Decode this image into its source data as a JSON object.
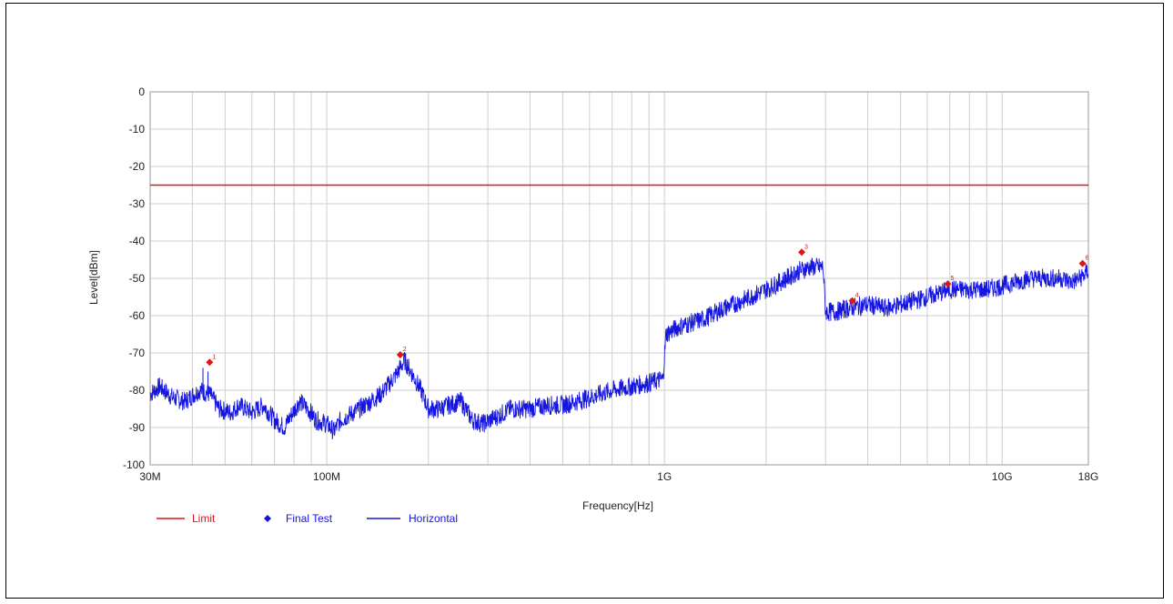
{
  "chart_data": {
    "type": "line",
    "xlabel": "Frequency[Hz]",
    "ylabel": "Level[dBm]",
    "x_scale": "log",
    "xlim_hz": [
      30000000,
      18000000000
    ],
    "ylim": [
      -100,
      0
    ],
    "grid": true,
    "x_tick_values_hz": [
      30000000,
      100000000,
      1000000000,
      10000000000,
      18000000000
    ],
    "x_tick_labels": [
      "30M",
      "100M",
      "1G",
      "10G",
      "18G"
    ],
    "y_ticks": [
      0,
      -10,
      -20,
      -30,
      -40,
      -50,
      -60,
      -70,
      -80,
      -90,
      -100
    ],
    "legend_position": "bottom-left",
    "colors": {
      "limit": "#e01515",
      "final_test": "#1515d8",
      "horizontal": "#1515e0"
    },
    "limit": {
      "name": "Limit",
      "value": -25
    },
    "final_test": {
      "name": "Final Test",
      "points": [
        {
          "label": "1",
          "x_hz": 45000000,
          "y": -72.5
        },
        {
          "label": "2",
          "x_hz": 165000000,
          "y": -70.5
        },
        {
          "label": "3",
          "x_hz": 2550000000,
          "y": -43
        },
        {
          "label": "4",
          "x_hz": 3600000000,
          "y": -56
        },
        {
          "label": "5",
          "x_hz": 6900000000,
          "y": -51.5
        },
        {
          "label": "6",
          "x_hz": 17300000000,
          "y": -46
        }
      ]
    },
    "horizontal": {
      "name": "Horizontal",
      "points": [
        [
          30000000,
          -81
        ],
        [
          32000000,
          -79
        ],
        [
          35000000,
          -82
        ],
        [
          38000000,
          -83
        ],
        [
          42000000,
          -80
        ],
        [
          45000000,
          -81
        ],
        [
          48000000,
          -85
        ],
        [
          52000000,
          -86
        ],
        [
          55000000,
          -84
        ],
        [
          60000000,
          -86
        ],
        [
          65000000,
          -84
        ],
        [
          70000000,
          -88
        ],
        [
          75000000,
          -90
        ],
        [
          78000000,
          -87
        ],
        [
          83000000,
          -83
        ],
        [
          88000000,
          -85
        ],
        [
          93000000,
          -88
        ],
        [
          100000000,
          -89
        ],
        [
          105000000,
          -91
        ],
        [
          110000000,
          -88
        ],
        [
          120000000,
          -86
        ],
        [
          130000000,
          -84
        ],
        [
          145000000,
          -81
        ],
        [
          160000000,
          -76
        ],
        [
          170000000,
          -72
        ],
        [
          180000000,
          -76
        ],
        [
          190000000,
          -80
        ],
        [
          200000000,
          -85
        ],
        [
          215000000,
          -85
        ],
        [
          230000000,
          -84
        ],
        [
          250000000,
          -83
        ],
        [
          270000000,
          -88
        ],
        [
          290000000,
          -89
        ],
        [
          320000000,
          -87
        ],
        [
          350000000,
          -85
        ],
        [
          400000000,
          -85
        ],
        [
          450000000,
          -84
        ],
        [
          500000000,
          -84
        ],
        [
          550000000,
          -83
        ],
        [
          600000000,
          -82
        ],
        [
          700000000,
          -80
        ],
        [
          800000000,
          -79
        ],
        [
          900000000,
          -78
        ],
        [
          990000000,
          -77
        ],
        [
          1010000000,
          -65
        ],
        [
          1100000000,
          -63
        ],
        [
          1300000000,
          -61
        ],
        [
          1500000000,
          -58
        ],
        [
          1700000000,
          -56
        ],
        [
          1900000000,
          -54
        ],
        [
          2100000000,
          -52
        ],
        [
          2300000000,
          -50
        ],
        [
          2500000000,
          -48
        ],
        [
          2700000000,
          -47
        ],
        [
          2950000000,
          -47
        ],
        [
          3000000000,
          -59
        ],
        [
          3200000000,
          -59
        ],
        [
          3500000000,
          -58
        ],
        [
          4000000000,
          -57
        ],
        [
          4500000000,
          -58
        ],
        [
          5000000000,
          -57
        ],
        [
          5500000000,
          -56
        ],
        [
          6000000000,
          -55
        ],
        [
          6500000000,
          -54
        ],
        [
          7000000000,
          -53
        ],
        [
          8000000000,
          -53
        ],
        [
          9000000000,
          -53
        ],
        [
          10000000000,
          -52
        ],
        [
          11000000000,
          -51
        ],
        [
          12000000000,
          -50
        ],
        [
          13000000000,
          -50
        ],
        [
          14000000000,
          -50
        ],
        [
          15000000000,
          -50
        ],
        [
          16000000000,
          -51
        ],
        [
          17000000000,
          -50
        ],
        [
          18000000000,
          -48
        ]
      ]
    }
  }
}
